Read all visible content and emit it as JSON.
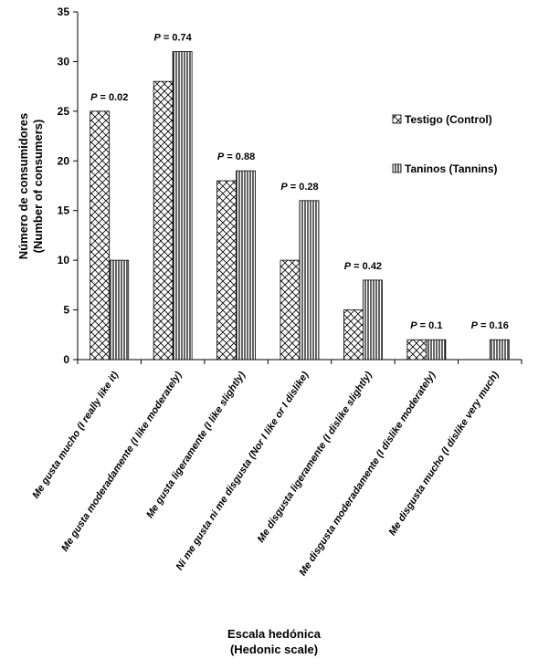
{
  "chart_data": {
    "type": "bar",
    "title": "",
    "categories": [
      "Me gusta mucho (I really like it)",
      "Me gusta moderadamente (I like moderately)",
      "Me gusta ligeramente (I like slightly)",
      "Ni me gusta ni me disgusta (Nor I like or I dislike)",
      "Me disgusta ligeramente (I dislike slightly)",
      "Me disgusta moderadamente (I dislike moderately)",
      "Me disgusta mucho (I dislike very much)"
    ],
    "series": [
      {
        "name": "Testigo (Control)",
        "pattern": "crosshatch",
        "values": [
          25,
          28,
          18,
          10,
          5,
          2,
          0
        ]
      },
      {
        "name": "Taninos (Tannins)",
        "pattern": "vertical-lines",
        "values": [
          10,
          31,
          19,
          16,
          8,
          2,
          2
        ]
      }
    ],
    "annotations": [
      "P = 0.02",
      "P = 0.74",
      "P = 0.88",
      "P = 0.28",
      "P = 0.42",
      "P = 0.1",
      "P = 0.16"
    ],
    "ylabel_lines": [
      "Número de consumidores",
      "(Number of consumers)"
    ],
    "xlabel_lines": [
      "Escala hedónica",
      "(Hedonic scale)"
    ],
    "ylim": [
      0,
      35
    ],
    "yticks": [
      0,
      5,
      10,
      15,
      20,
      25,
      30,
      35
    ],
    "grid": false,
    "legend_position": "right",
    "bar_fill": "#ffffff",
    "bar_stroke": "#000000"
  }
}
